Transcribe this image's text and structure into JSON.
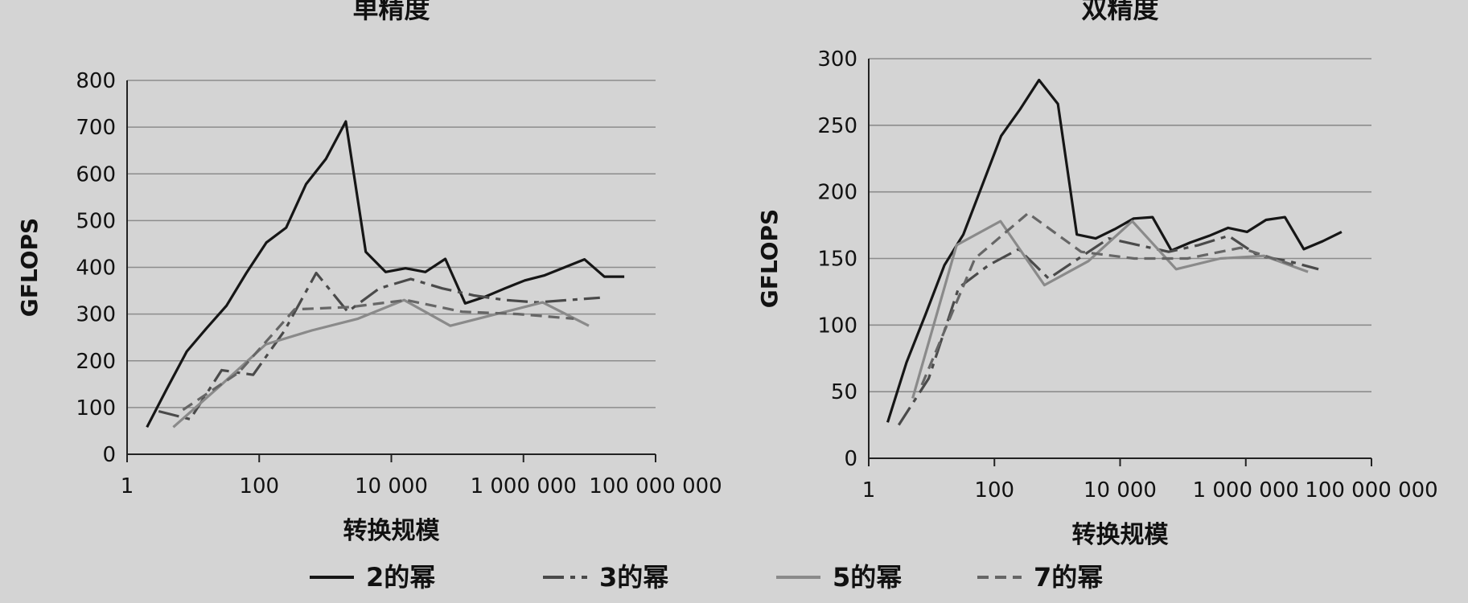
{
  "legend": [
    {
      "label": "2的幂",
      "style": "solid"
    },
    {
      "label": "3的幂",
      "style": "dashdot"
    },
    {
      "label": "5的幂",
      "style": "solid-light"
    },
    {
      "label": "7的幂",
      "style": "dashed"
    }
  ],
  "series_styles": {
    "2的幂": {
      "color": "#161616",
      "dash": ""
    },
    "3的幂": {
      "color": "#4a4a4a",
      "dash": "26 8 6 8"
    },
    "5的幂": {
      "color": "#8a8a8a",
      "dash": ""
    },
    "7的幂": {
      "color": "#666666",
      "dash": "14 8"
    }
  },
  "chart_data": [
    {
      "type": "line",
      "title": "单精度",
      "xlabel": "转换规模",
      "ylabel": "GFLOPS",
      "xscale": "log",
      "xlim": [
        1,
        100000000
      ],
      "ylim": [
        0,
        800
      ],
      "xticks": [
        1,
        100,
        10000,
        1000000,
        100000000
      ],
      "xtick_labels": [
        "1",
        "100",
        "10 000",
        "1 000 000",
        "100 000 000"
      ],
      "yticks": [
        0,
        100,
        200,
        300,
        400,
        500,
        600,
        700,
        800
      ],
      "grid": true,
      "series": [
        {
          "name": "2的幂",
          "x": [
            2,
            4,
            8,
            16,
            32,
            64,
            128,
            256,
            512,
            1024,
            2048,
            4096,
            8192,
            16384,
            32768,
            65536,
            131072,
            262144,
            524288,
            1048576,
            2097152,
            4194304,
            8388608,
            16777216,
            33554432
          ],
          "y": [
            58,
            140,
            220,
            270,
            318,
            388,
            453,
            485,
            578,
            632,
            712,
            433,
            390,
            398,
            390,
            418,
            323,
            337,
            355,
            372,
            383,
            400,
            417,
            380,
            380
          ]
        },
        {
          "name": "3的幂",
          "x": [
            3,
            9,
            27,
            81,
            243,
            729,
            2187,
            6561,
            19683,
            59049,
            177147,
            531441,
            1594323,
            4782969,
            14348907
          ],
          "y": [
            92,
            75,
            180,
            170,
            265,
            388,
            305,
            355,
            375,
            355,
            340,
            330,
            325,
            330,
            335
          ]
        },
        {
          "name": "5的幂",
          "x": [
            5,
            25,
            125,
            625,
            3125,
            15625,
            78125,
            390625,
            1953125,
            9765625
          ],
          "y": [
            58,
            145,
            235,
            265,
            290,
            330,
            275,
            300,
            325,
            275
          ]
        },
        {
          "name": "7的幂",
          "x": [
            7,
            49,
            343,
            2401,
            16807,
            117649,
            823543,
            5764801
          ],
          "y": [
            95,
            175,
            310,
            315,
            330,
            305,
            300,
            290
          ]
        }
      ]
    },
    {
      "type": "line",
      "title": "双精度",
      "xlabel": "转换规模",
      "ylabel": "GFLOPS",
      "xscale": "log",
      "xlim": [
        1,
        100000000
      ],
      "ylim": [
        0,
        300
      ],
      "xticks": [
        1,
        100,
        10000,
        1000000,
        100000000
      ],
      "xtick_labels": [
        "1",
        "100",
        "10 000",
        "1 000 000",
        "100 000 000"
      ],
      "yticks": [
        0,
        50,
        100,
        150,
        200,
        250,
        300
      ],
      "grid": true,
      "series": [
        {
          "name": "2的幂",
          "x": [
            2,
            4,
            8,
            16,
            32,
            64,
            128,
            256,
            512,
            1024,
            2048,
            4096,
            8192,
            16384,
            32768,
            65536,
            131072,
            262144,
            524288,
            1048576,
            2097152,
            4194304,
            8388608,
            16777216,
            33554432
          ],
          "y": [
            27,
            72,
            108,
            145,
            168,
            205,
            242,
            262,
            284,
            266,
            168,
            165,
            172,
            180,
            181,
            156,
            162,
            167,
            173,
            170,
            179,
            181,
            157,
            163,
            170
          ]
        },
        {
          "name": "3的幂",
          "x": [
            3,
            9,
            27,
            81,
            243,
            729,
            2187,
            6561,
            19683,
            59049,
            177147,
            531441,
            1594323,
            4782969,
            14348907
          ],
          "y": [
            25,
            60,
            128,
            145,
            157,
            135,
            150,
            165,
            160,
            155,
            160,
            167,
            152,
            148,
            142
          ]
        },
        {
          "name": "5的幂",
          "x": [
            5,
            25,
            125,
            625,
            3125,
            15625,
            78125,
            390625,
            1953125,
            9765625
          ],
          "y": [
            45,
            160,
            178,
            130,
            148,
            178,
            142,
            150,
            152,
            140
          ]
        },
        {
          "name": "7的幂",
          "x": [
            7,
            49,
            343,
            2401,
            16807,
            117649,
            823543,
            5764801
          ],
          "y": [
            55,
            150,
            184,
            155,
            150,
            150,
            158,
            145
          ]
        }
      ]
    }
  ]
}
